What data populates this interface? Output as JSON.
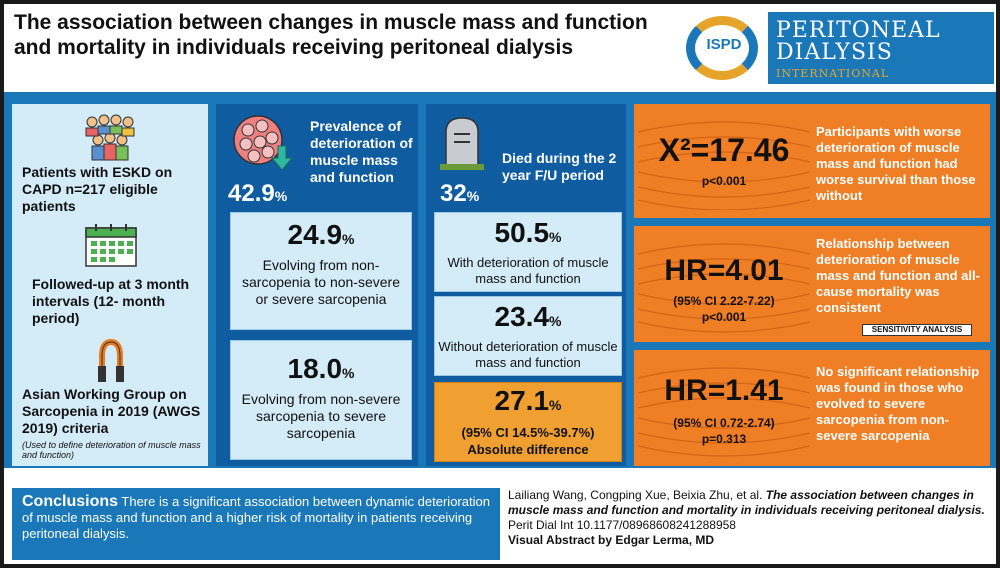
{
  "header": {
    "title": "The association between changes in muscle mass and function and mortality in individuals receiving peritoneal dialysis"
  },
  "logo": {
    "abbr": "ISPD",
    "name_line1": "PERITONEAL",
    "name_line2": "DIALYSIS",
    "sub": "INTERNATIONAL"
  },
  "left": {
    "patients": "Patients with ESKD on CAPD n=217 eligible patients",
    "followup": "Followed-up at 3 month intervals (12- month period)",
    "criteria": "Asian Working Group on Sarcopenia in 2019 (AWGS 2019) criteria",
    "criteria_note": "(Used to define deterioration of muscle mass and function)"
  },
  "prevalence": {
    "label": "Prevalence of deterioration of muscle mass and function",
    "value": "42.9",
    "unit": "%",
    "box1_value": "24.9",
    "box1_unit": "%",
    "box1_text": "Evolving from non-sarcopenia to non-severe or severe sarcopenia",
    "box2_value": "18.0",
    "box2_unit": "%",
    "box2_text": "Evolving from non-severe sarcopenia to severe sarcopenia"
  },
  "died": {
    "label": "Died during the 2 year F/U period",
    "value": "32",
    "unit": "%",
    "box1_value": "50.5",
    "box1_unit": "%",
    "box1_text": "With deterioration of muscle mass and function",
    "box2_value": "23.4",
    "box2_unit": "%",
    "box2_text": "Without deterioration of muscle mass and function",
    "box3_value": "27.1",
    "box3_unit": "%",
    "box3_ci": "(95% CI 14.5%-39.7%)",
    "box3_text": "Absolute difference"
  },
  "results": {
    "r1_stat": "X²=17.46",
    "r1_p": "p<0.001",
    "r1_text": "Participants with worse deterioration of muscle mass and function had worse survival than those without",
    "r2_stat": "HR=4.01",
    "r2_ci": "(95% CI 2.22-7.22)",
    "r2_p": "p<0.001",
    "r2_text": "Relationship between deterioration of muscle mass and function and all-cause mortality was consistent",
    "r2_badge": "SENSITIVITY ANALYSIS",
    "r3_stat": "HR=1.41",
    "r3_ci": "(95% CI 0.72-2.74)",
    "r3_p": "p=0.313",
    "r3_text": "No significant relationship was found in those who evolved to severe sarcopenia from non-severe sarcopenia"
  },
  "conclusions": {
    "heading": "Conclusions",
    "text": "There is a significant association between dynamic deterioration of muscle mass and function and a higher risk of mortality in patients receiving peritoneal dialysis."
  },
  "citation": {
    "authors": "Lailiang Wang, Congping Xue, Beixia Zhu, et al.",
    "title": "The association between changes in muscle mass and function and mortality in individuals receiving peritoneal dialysis.",
    "journal": "Perit Dial Int 10.1177/08968608241288958",
    "credit": "Visual Abstract by Edgar Lerma, MD"
  }
}
